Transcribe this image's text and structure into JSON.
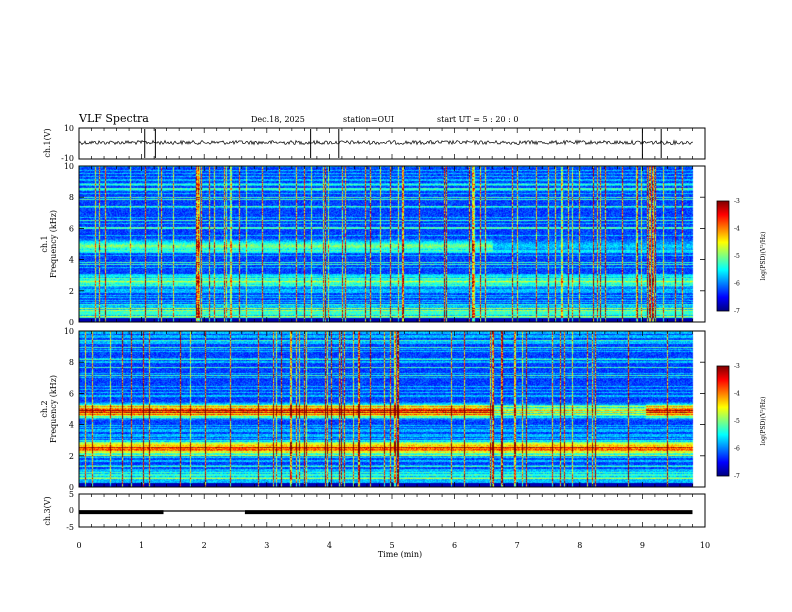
{
  "header": {
    "title": "VLF Spectra",
    "date": "Dec.18, 2025",
    "station": "station=OUI",
    "start_ut": "start  UT =   5 : 20 : 0"
  },
  "colors": {
    "colormap": [
      "#00007f",
      "#0000ff",
      "#007fff",
      "#00ffff",
      "#7fff7f",
      "#ffff00",
      "#ff7f00",
      "#ff0000",
      "#7f0000"
    ],
    "trace": "#000000"
  },
  "chart_data": [
    {
      "type": "line",
      "name": "ch1-waveform",
      "ylabel": "ch.1(V)",
      "ylim": [
        -10,
        10
      ],
      "yticks": [
        "10",
        "-10"
      ],
      "baseline": 0,
      "description_values": {
        "noise_level": 1,
        "spikes_at_min": [
          1.05,
          1.22,
          3.7,
          4.15,
          9.0,
          9.3
        ]
      }
    },
    {
      "type": "heatmap",
      "name": "ch1-spectrogram",
      "ylabel": "ch.1\nFrequency (kHz)",
      "ylabel_lines": [
        "ch.1",
        "Frequency (kHz)"
      ],
      "ylim": [
        0,
        10
      ],
      "yticks": [
        "0",
        "2",
        "4",
        "6",
        "8",
        "10"
      ],
      "xlim": [
        0,
        10
      ],
      "bands_khz": [
        {
          "center": 4.9,
          "width": 0.5,
          "level": 0.35,
          "end_min": 6.6
        },
        {
          "center": 2.6,
          "width": 0.5,
          "level": 0.3,
          "end_min": 9.8
        }
      ],
      "colorbar": {
        "label": "log(PSD)(V²/Hz)",
        "ticks": [
          "-3",
          "-4",
          "-5",
          "-6",
          "-7"
        ],
        "range": [
          -7,
          -3
        ]
      }
    },
    {
      "type": "heatmap",
      "name": "ch2-spectrogram",
      "ylabel": "ch.2\nFrequency (kHz)",
      "ylabel_lines": [
        "ch.2",
        "Frequency (kHz)"
      ],
      "ylim": [
        0,
        10
      ],
      "yticks": [
        "0",
        "2",
        "4",
        "6",
        "8",
        "10"
      ],
      "xlim": [
        0,
        10
      ],
      "bands_khz": [
        {
          "center": 4.9,
          "width": 0.6,
          "level": 0.62,
          "end_min": 6.6,
          "resume_min": 9.05
        },
        {
          "center": 2.5,
          "width": 0.6,
          "level": 0.58,
          "end_min": 9.8
        }
      ],
      "colorbar": {
        "label": "log(PSD)(V²/Hz)",
        "ticks": [
          "-3",
          "-4",
          "-5",
          "-6",
          "-7"
        ],
        "range": [
          -7,
          -3
        ]
      }
    },
    {
      "type": "line",
      "name": "ch3-level",
      "ylabel": "ch.3(V)",
      "ylim": [
        -5,
        5
      ],
      "yticks": [
        "5",
        "0",
        "-5"
      ],
      "segments": [
        {
          "x0": 0,
          "x1": 1.35,
          "y": -0.5
        },
        {
          "x0": 1.35,
          "x1": 2.65,
          "y": -0.15
        },
        {
          "x0": 2.65,
          "x1": 9.8,
          "y": -0.5
        }
      ]
    }
  ],
  "xaxis": {
    "label": "Time  (min)",
    "xlim": [
      0,
      10
    ],
    "ticks": [
      "0",
      "1",
      "2",
      "3",
      "4",
      "5",
      "6",
      "7",
      "8",
      "9",
      "10"
    ]
  }
}
